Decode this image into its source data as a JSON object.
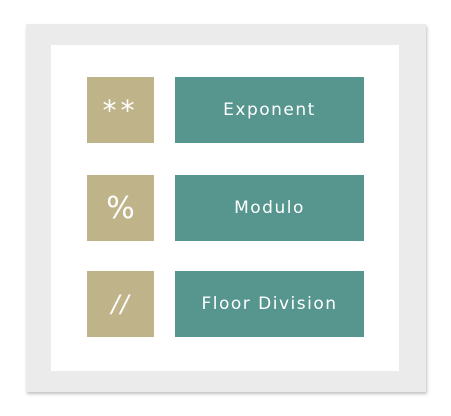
{
  "colors": {
    "frame": "#ebebeb",
    "panel": "#ffffff",
    "symbol_box": "#bfb38a",
    "label_box": "#57958f",
    "text": "#ffffff"
  },
  "operators": [
    {
      "symbol": "**",
      "label": "Exponent"
    },
    {
      "symbol": "%",
      "label": "Modulo"
    },
    {
      "symbol": "//",
      "label": "Floor Division"
    }
  ]
}
